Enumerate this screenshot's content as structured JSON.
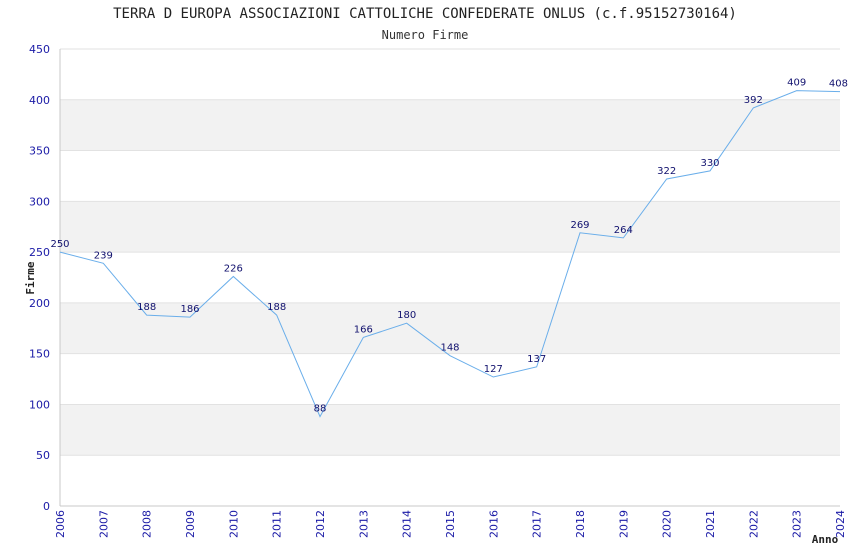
{
  "chart_data": {
    "type": "line",
    "title": "TERRA D EUROPA ASSOCIAZIONI CATTOLICHE CONFEDERATE ONLUS (c.f.95152730164)",
    "subtitle": "Numero Firme",
    "xlabel": "Anno",
    "ylabel": "Firme",
    "categories": [
      "2006",
      "2007",
      "2008",
      "2009",
      "2010",
      "2011",
      "2012",
      "2013",
      "2014",
      "2015",
      "2016",
      "2017",
      "2018",
      "2019",
      "2020",
      "2021",
      "2022",
      "2023",
      "2024"
    ],
    "values": [
      250,
      239,
      188,
      186,
      226,
      188,
      88,
      166,
      180,
      148,
      127,
      137,
      269,
      264,
      322,
      330,
      392,
      409,
      408
    ],
    "ylim": [
      0,
      450
    ],
    "yticks": [
      0,
      50,
      100,
      150,
      200,
      250,
      300,
      350,
      400,
      450
    ],
    "grid": true,
    "line_color": "#6aaeea",
    "band_color": "#f2f2f2",
    "tick_color": "#1a1aa6",
    "label_color": "#11116e"
  }
}
